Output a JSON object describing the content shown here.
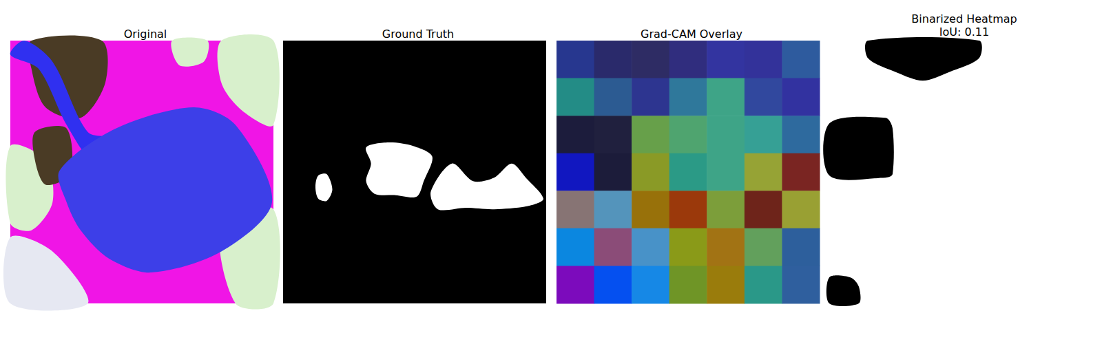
{
  "panels": {
    "original": {
      "title": "Original"
    },
    "ground_truth": {
      "title": "Ground Truth"
    },
    "binarized": {
      "title": "Binarized Heatmap",
      "iou_label": "IoU: 0.11"
    }
  },
  "chart_data": {
    "type": "heatmap",
    "title": "Grad-CAM Overlay",
    "tick_labels": false,
    "cells": [
      [
        "#27378f",
        "#2a2a6b",
        "#2e2c64",
        "#302d7e",
        "#3334a0",
        "#33329a",
        "#2e5b9e"
      ],
      [
        "#238c86",
        "#2c5b92",
        "#2d3590",
        "#2f789b",
        "#3ea487",
        "#31489e",
        "#3232a0"
      ],
      [
        "#1c1c3c",
        "#20203e",
        "#67a04a",
        "#4fa46f",
        "#3ea487",
        "#36a095",
        "#2e6a9e"
      ],
      [
        "#1117c0",
        "#1c1c3a",
        "#8a9a26",
        "#2b9a86",
        "#3ea487",
        "#96a335",
        "#7a2522"
      ],
      [
        "#877474",
        "#5494bb",
        "#98710a",
        "#9b390b",
        "#7c9e3a",
        "#6e241a",
        "#99a033"
      ],
      [
        "#0b87e0",
        "#8b4c78",
        "#4892c8",
        "#8a9a18",
        "#a27314",
        "#62a05c",
        "#2d5f9c"
      ],
      [
        "#7c0bbc",
        "#0550f0",
        "#1688e6",
        "#6f9526",
        "#9a7c0c",
        "#2a9888",
        "#2f5f9e"
      ]
    ]
  }
}
